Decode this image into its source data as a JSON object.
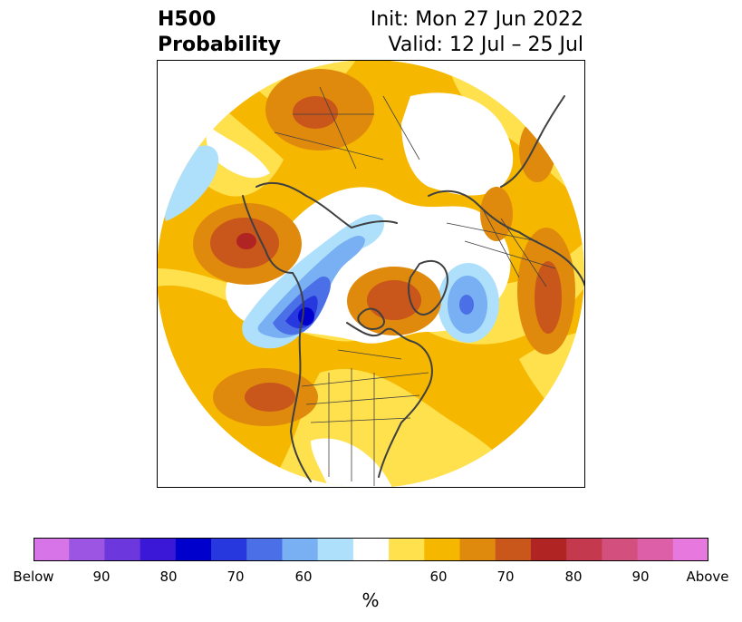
{
  "title": {
    "variable": "H500",
    "product": "Probability",
    "init": "Init: Mon 27 Jun 2022",
    "valid": "Valid: 12 Jul – 25 Jul"
  },
  "colorbar": {
    "colors": [
      "#d674e8",
      "#9c55e2",
      "#6c37dc",
      "#3b18d8",
      "#0000cc",
      "#2638de",
      "#4b6fe6",
      "#78b0f3",
      "#aee0fb",
      "#ffffff",
      "#ffe04d",
      "#f5b700",
      "#e08a0d",
      "#c9561a",
      "#b02424",
      "#c4394d",
      "#d24f7e",
      "#dc5fa7",
      "#e678de"
    ],
    "tick_labels": [
      "Below",
      "90",
      "80",
      "70",
      "60",
      "60",
      "70",
      "80",
      "90",
      "Above"
    ],
    "units": "%"
  },
  "map_colors": {
    "yellow": "#ffe04d",
    "gold": "#f5b700",
    "orange": "#e08a0d",
    "dark_orange": "#c9561a",
    "red": "#b02424",
    "light_blue": "#aee0fb",
    "blue": "#78b0f3",
    "mid_blue": "#4b6fe6",
    "royal_blue": "#2638de",
    "deep_blue": "#0000cc",
    "coast": "#404040"
  }
}
